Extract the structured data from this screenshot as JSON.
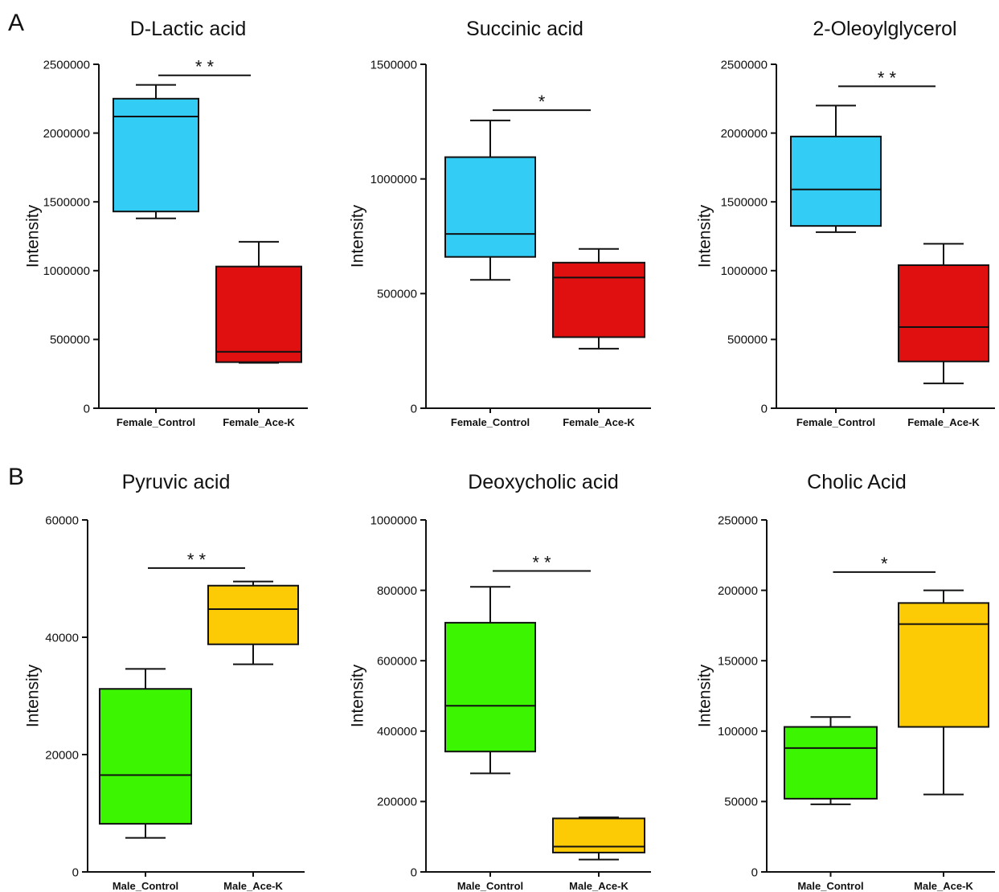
{
  "panels": [
    "A",
    "B"
  ],
  "chart_data": [
    {
      "type": "box",
      "panel": "A",
      "title": "D-Lactic acid",
      "ylabel": "Intensity",
      "ylim": [
        0,
        2500000
      ],
      "yticks": [
        0,
        500000,
        1000000,
        1500000,
        2000000,
        2500000
      ],
      "yticklabels": [
        "0",
        "500000",
        "1000000",
        "1500000",
        "2000000",
        "2500000"
      ],
      "categories": [
        "Female_Control",
        "Female_Ace-K"
      ],
      "boxes": [
        {
          "min": 1380000,
          "q1": 1430000,
          "median": 2120000,
          "q3": 2250000,
          "max": 2350000,
          "color": "#33ccf5"
        },
        {
          "min": 330000,
          "q1": 335000,
          "median": 410000,
          "q3": 1030000,
          "max": 1210000,
          "color": "#e01010"
        }
      ],
      "significance": "* *",
      "sig_y": 2420000
    },
    {
      "type": "box",
      "panel": "A",
      "title": "Succinic acid",
      "ylabel": "Intensity",
      "ylim": [
        0,
        1500000
      ],
      "yticks": [
        0,
        500000,
        1000000,
        1500000
      ],
      "yticklabels": [
        "0",
        "500000",
        "1000000",
        "1500000"
      ],
      "categories": [
        "Female_Control",
        "Female_Ace-K"
      ],
      "boxes": [
        {
          "min": 560000,
          "q1": 660000,
          "median": 760000,
          "q3": 1095000,
          "max": 1255000,
          "color": "#33ccf5"
        },
        {
          "min": 260000,
          "q1": 310000,
          "median": 570000,
          "q3": 635000,
          "max": 695000,
          "color": "#e01010"
        }
      ],
      "significance": "*",
      "sig_y": 1300000
    },
    {
      "type": "box",
      "panel": "A",
      "title": "2-Oleoylglycerol",
      "ylabel": "Intensity",
      "ylim": [
        0,
        2500000
      ],
      "yticks": [
        0,
        500000,
        1000000,
        1500000,
        2000000,
        2500000
      ],
      "yticklabels": [
        "0",
        "500000",
        "1000000",
        "1500000",
        "2000000",
        "2500000"
      ],
      "categories": [
        "Female_Control",
        "Female_Ace-K"
      ],
      "boxes": [
        {
          "min": 1280000,
          "q1": 1325000,
          "median": 1590000,
          "q3": 1975000,
          "max": 2200000,
          "color": "#33ccf5"
        },
        {
          "min": 180000,
          "q1": 340000,
          "median": 590000,
          "q3": 1040000,
          "max": 1195000,
          "color": "#e01010"
        }
      ],
      "significance": "* *",
      "sig_y": 2340000
    },
    {
      "type": "box",
      "panel": "B",
      "title": "Pyruvic acid",
      "ylabel": "Intensity",
      "ylim": [
        0,
        60000
      ],
      "yticks": [
        0,
        20000,
        40000,
        60000
      ],
      "yticklabels": [
        "0",
        "20000",
        "40000",
        "60000"
      ],
      "categories": [
        "Male_Control",
        "Male_Ace-K"
      ],
      "boxes": [
        {
          "min": 5800,
          "q1": 8200,
          "median": 16500,
          "q3": 31200,
          "max": 34600,
          "color": "#3cf500"
        },
        {
          "min": 35400,
          "q1": 38800,
          "median": 44800,
          "q3": 48800,
          "max": 49500,
          "color": "#fccb06"
        }
      ],
      "significance": "* *",
      "sig_y": 51800
    },
    {
      "type": "box",
      "panel": "B",
      "title": "Deoxycholic acid",
      "ylabel": "Intensity",
      "ylim": [
        0,
        1000000
      ],
      "yticks": [
        0,
        200000,
        400000,
        600000,
        800000,
        1000000
      ],
      "yticklabels": [
        "0",
        "200000",
        "400000",
        "600000",
        "800000",
        "1000000"
      ],
      "categories": [
        "Male_Control",
        "Male_Ace-K"
      ],
      "boxes": [
        {
          "min": 280000,
          "q1": 342000,
          "median": 472000,
          "q3": 708000,
          "max": 810000,
          "color": "#3cf500"
        },
        {
          "min": 35000,
          "q1": 55000,
          "median": 72000,
          "q3": 152000,
          "max": 155000,
          "color": "#fccb06"
        }
      ],
      "significance": "* *",
      "sig_y": 855000
    },
    {
      "type": "box",
      "panel": "B",
      "title": "Cholic Acid",
      "ylabel": "Intensity",
      "ylim": [
        0,
        250000
      ],
      "yticks": [
        0,
        50000,
        100000,
        150000,
        200000,
        250000
      ],
      "yticklabels": [
        "0",
        "50000",
        "100000",
        "150000",
        "200000",
        "250000"
      ],
      "categories": [
        "Male_Control",
        "Male_Ace-K"
      ],
      "boxes": [
        {
          "min": 48000,
          "q1": 52000,
          "median": 88000,
          "q3": 103000,
          "max": 110000,
          "color": "#3cf500"
        },
        {
          "min": 55000,
          "q1": 103000,
          "median": 176000,
          "q3": 191000,
          "max": 200000,
          "color": "#fccb06"
        }
      ],
      "significance": "*",
      "sig_y": 213000
    }
  ]
}
